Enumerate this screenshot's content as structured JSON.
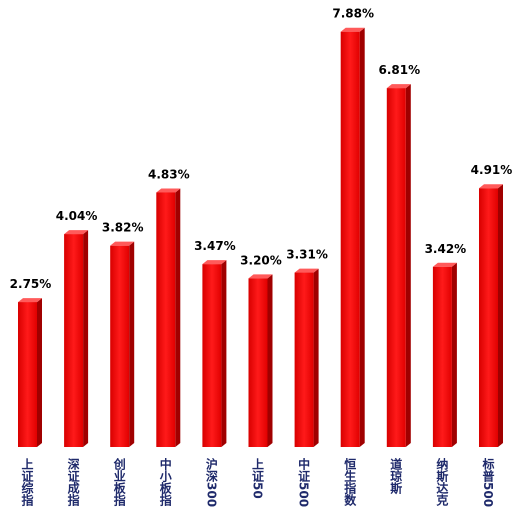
{
  "chart_data": {
    "type": "bar3d",
    "categories": [
      "上证综指",
      "深证成指",
      "创业板指",
      "中小板指",
      "沪深300",
      "上证50",
      "中证500",
      "恒生指数",
      "道琼斯",
      "纳斯达克",
      "标普500"
    ],
    "values": [
      2.75,
      4.04,
      3.82,
      4.83,
      3.47,
      3.2,
      3.31,
      7.88,
      6.81,
      3.42,
      4.91
    ],
    "value_labels": [
      "2.75%",
      "4.04%",
      "3.82%",
      "4.83%",
      "3.47%",
      "3.20%",
      "3.31%",
      "7.88%",
      "6.81%",
      "3.42%",
      "4.91%"
    ],
    "color": "#ff0000"
  }
}
